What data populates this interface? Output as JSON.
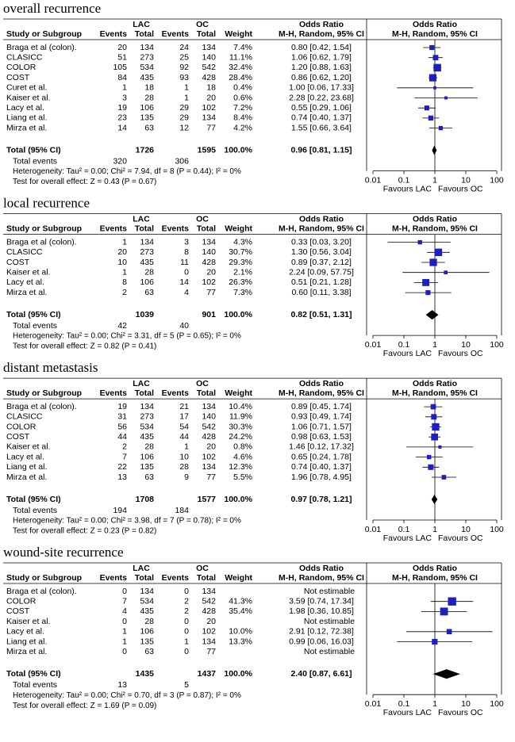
{
  "header": {
    "groups": [
      "LAC",
      "OC",
      "Odds Ratio",
      "Odds Ratio"
    ],
    "columns": [
      "Study or Subgroup",
      "Events",
      "Total",
      "Events",
      "Total",
      "Weight",
      "M-H, Random, 95% CI",
      "M-H, Random, 95% CI"
    ]
  },
  "chart_data": [
    {
      "type": "forest",
      "title": "overall recurrence",
      "x_scale": "log",
      "xlim": [
        0.01,
        100
      ],
      "xticks": [
        0.01,
        0.1,
        1,
        10,
        100
      ],
      "favours": [
        "Favours LAC",
        "Favours OC"
      ],
      "color": "#1f1fbf",
      "rows": [
        {
          "study": "Braga et al (colon).",
          "events_lac": 20,
          "total_lac": 134,
          "events_oc": 24,
          "total_oc": 134,
          "weight": 7.4,
          "weight_label": "7.4%",
          "or": 0.8,
          "ci": [
            0.42,
            1.54
          ],
          "or_label": "0.80 [0.42, 1.54]"
        },
        {
          "study": "CLASICC",
          "events_lac": 51,
          "total_lac": 273,
          "events_oc": 25,
          "total_oc": 140,
          "weight": 11.1,
          "weight_label": "11.1%",
          "or": 1.06,
          "ci": [
            0.62,
            1.79
          ],
          "or_label": "1.06 [0.62, 1.79]"
        },
        {
          "study": "COLOR",
          "events_lac": 105,
          "total_lac": 534,
          "events_oc": 92,
          "total_oc": 542,
          "weight": 32.4,
          "weight_label": "32.4%",
          "or": 1.2,
          "ci": [
            0.88,
            1.63
          ],
          "or_label": "1.20 [0.88, 1.63]"
        },
        {
          "study": "COST",
          "events_lac": 84,
          "total_lac": 435,
          "events_oc": 93,
          "total_oc": 428,
          "weight": 28.4,
          "weight_label": "28.4%",
          "or": 0.86,
          "ci": [
            0.62,
            1.2
          ],
          "or_label": "0.86 [0.62, 1.20]"
        },
        {
          "study": "Curet et al.",
          "events_lac": 1,
          "total_lac": 18,
          "events_oc": 1,
          "total_oc": 18,
          "weight": 0.4,
          "weight_label": "0.4%",
          "or": 1.0,
          "ci": [
            0.06,
            17.33
          ],
          "or_label": "1.00 [0.06, 17.33]"
        },
        {
          "study": "Kaiser et al.",
          "events_lac": 3,
          "total_lac": 28,
          "events_oc": 1,
          "total_oc": 20,
          "weight": 0.6,
          "weight_label": "0.6%",
          "or": 2.28,
          "ci": [
            0.22,
            23.68
          ],
          "or_label": "2.28 [0.22, 23.68]"
        },
        {
          "study": "Lacy et al.",
          "events_lac": 19,
          "total_lac": 106,
          "events_oc": 29,
          "total_oc": 102,
          "weight": 7.2,
          "weight_label": "7.2%",
          "or": 0.55,
          "ci": [
            0.29,
            1.06
          ],
          "or_label": "0.55 [0.29, 1.06]"
        },
        {
          "study": "Liang et al.",
          "events_lac": 23,
          "total_lac": 135,
          "events_oc": 29,
          "total_oc": 134,
          "weight": 8.4,
          "weight_label": "8.4%",
          "or": 0.74,
          "ci": [
            0.4,
            1.37
          ],
          "or_label": "0.74 [0.40, 1.37]"
        },
        {
          "study": "Mirza et al.",
          "events_lac": 14,
          "total_lac": 63,
          "events_oc": 12,
          "total_oc": 77,
          "weight": 4.2,
          "weight_label": "4.2%",
          "or": 1.55,
          "ci": [
            0.66,
            3.64
          ],
          "or_label": "1.55 [0.66, 3.64]"
        }
      ],
      "total": {
        "label": "Total (95% CI)",
        "total_lac": 1726,
        "total_oc": 1595,
        "weight": 100,
        "weight_label": "100.0%",
        "or": 0.96,
        "ci": [
          0.81,
          1.15
        ],
        "or_label": "0.96 [0.81, 1.15]"
      },
      "total_events": {
        "label": "Total events",
        "lac": 320,
        "oc": 306
      },
      "heterogeneity": "Heterogeneity: Tau² = 0.00; Chi² = 7.94, df = 8 (P = 0.44); I² = 0%",
      "overall_effect": "Test for overall effect: Z = 0.43 (P = 0.67)"
    },
    {
      "type": "forest",
      "title": "local recurrence",
      "x_scale": "log",
      "xlim": [
        0.01,
        100
      ],
      "xticks": [
        0.01,
        0.1,
        1,
        10,
        100
      ],
      "favours": [
        "Favours LAC",
        "Favours OC"
      ],
      "color": "#1f1fbf",
      "rows": [
        {
          "study": "Braga et al (colon).",
          "events_lac": 1,
          "total_lac": 134,
          "events_oc": 3,
          "total_oc": 134,
          "weight": 4.3,
          "weight_label": "4.3%",
          "or": 0.33,
          "ci": [
            0.03,
            3.2
          ],
          "or_label": "0.33 [0.03, 3.20]"
        },
        {
          "study": "CLASICC",
          "events_lac": 20,
          "total_lac": 273,
          "events_oc": 8,
          "total_oc": 140,
          "weight": 30.7,
          "weight_label": "30.7%",
          "or": 1.3,
          "ci": [
            0.56,
            3.04
          ],
          "or_label": "1.30 [0.56, 3.04]"
        },
        {
          "study": "COST",
          "events_lac": 10,
          "total_lac": 435,
          "events_oc": 11,
          "total_oc": 428,
          "weight": 29.3,
          "weight_label": "29.3%",
          "or": 0.89,
          "ci": [
            0.37,
            2.12
          ],
          "or_label": "0.89 [0.37, 2.12]"
        },
        {
          "study": "Kaiser et al.",
          "events_lac": 1,
          "total_lac": 28,
          "events_oc": 0,
          "total_oc": 20,
          "weight": 2.1,
          "weight_label": "2.1%",
          "or": 2.24,
          "ci": [
            0.09,
            57.75
          ],
          "or_label": "2.24 [0.09, 57.75]"
        },
        {
          "study": "Lacy et al.",
          "events_lac": 8,
          "total_lac": 106,
          "events_oc": 14,
          "total_oc": 102,
          "weight": 26.3,
          "weight_label": "26.3%",
          "or": 0.51,
          "ci": [
            0.21,
            1.28
          ],
          "or_label": "0.51 [0.21, 1.28]"
        },
        {
          "study": "Mirza et al.",
          "events_lac": 2,
          "total_lac": 63,
          "events_oc": 4,
          "total_oc": 77,
          "weight": 7.3,
          "weight_label": "7.3%",
          "or": 0.6,
          "ci": [
            0.11,
            3.38
          ],
          "or_label": "0.60 [0.11, 3.38]"
        }
      ],
      "total": {
        "label": "Total (95% CI)",
        "total_lac": 1039,
        "total_oc": 901,
        "weight": 100,
        "weight_label": "100.0%",
        "or": 0.82,
        "ci": [
          0.51,
          1.31
        ],
        "or_label": "0.82 [0.51, 1.31]"
      },
      "total_events": {
        "label": "Total events",
        "lac": 42,
        "oc": 40
      },
      "heterogeneity": "Heterogeneity: Tau² = 0.00; Chi² = 3.31, df = 5 (P = 0.65); I² = 0%",
      "overall_effect": "Test for overall effect: Z = 0.82 (P = 0.41)"
    },
    {
      "type": "forest",
      "title": "distant metastasis",
      "x_scale": "log",
      "xlim": [
        0.01,
        100
      ],
      "xticks": [
        0.01,
        0.1,
        1,
        10,
        100
      ],
      "favours": [
        "Favours LAC",
        "Favours OC"
      ],
      "color": "#1f1fbf",
      "rows": [
        {
          "study": "Braga et al (colon).",
          "events_lac": 19,
          "total_lac": 134,
          "events_oc": 21,
          "total_oc": 134,
          "weight": 10.4,
          "weight_label": "10.4%",
          "or": 0.89,
          "ci": [
            0.45,
            1.74
          ],
          "or_label": "0.89 [0.45, 1.74]"
        },
        {
          "study": "CLASICC",
          "events_lac": 31,
          "total_lac": 273,
          "events_oc": 17,
          "total_oc": 140,
          "weight": 11.9,
          "weight_label": "11.9%",
          "or": 0.93,
          "ci": [
            0.49,
            1.74
          ],
          "or_label": "0.93 [0.49, 1.74]"
        },
        {
          "study": "COLOR",
          "events_lac": 56,
          "total_lac": 534,
          "events_oc": 54,
          "total_oc": 542,
          "weight": 30.3,
          "weight_label": "30.3%",
          "or": 1.06,
          "ci": [
            0.71,
            1.57
          ],
          "or_label": "1.06 [0.71, 1.57]"
        },
        {
          "study": "COST",
          "events_lac": 44,
          "total_lac": 435,
          "events_oc": 44,
          "total_oc": 428,
          "weight": 24.2,
          "weight_label": "24.2%",
          "or": 0.98,
          "ci": [
            0.63,
            1.53
          ],
          "or_label": "0.98 [0.63, 1.53]"
        },
        {
          "study": "Kaiser et al.",
          "events_lac": 2,
          "total_lac": 28,
          "events_oc": 1,
          "total_oc": 20,
          "weight": 0.8,
          "weight_label": "0.8%",
          "or": 1.46,
          "ci": [
            0.12,
            17.32
          ],
          "or_label": "1.46 [0.12, 17.32]"
        },
        {
          "study": "Lacy et al.",
          "events_lac": 7,
          "total_lac": 106,
          "events_oc": 10,
          "total_oc": 102,
          "weight": 4.6,
          "weight_label": "4.6%",
          "or": 0.65,
          "ci": [
            0.24,
            1.78
          ],
          "or_label": "0.65 [0.24, 1.78]"
        },
        {
          "study": "Liang et al.",
          "events_lac": 22,
          "total_lac": 135,
          "events_oc": 28,
          "total_oc": 134,
          "weight": 12.3,
          "weight_label": "12.3%",
          "or": 0.74,
          "ci": [
            0.4,
            1.37
          ],
          "or_label": "0.74 [0.40, 1.37]"
        },
        {
          "study": "Mirza et al.",
          "events_lac": 13,
          "total_lac": 63,
          "events_oc": 9,
          "total_oc": 77,
          "weight": 5.5,
          "weight_label": "5.5%",
          "or": 1.96,
          "ci": [
            0.78,
            4.95
          ],
          "or_label": "1.96 [0.78, 4.95]"
        }
      ],
      "total": {
        "label": "Total (95% CI)",
        "total_lac": 1708,
        "total_oc": 1577,
        "weight": 100,
        "weight_label": "100.0%",
        "or": 0.97,
        "ci": [
          0.78,
          1.21
        ],
        "or_label": "0.97 [0.78, 1.21]"
      },
      "total_events": {
        "label": "Total events",
        "lac": 194,
        "oc": 184
      },
      "heterogeneity": "Heterogeneity: Tau² = 0.00; Chi² = 3.98, df = 7 (P = 0.78); I² = 0%",
      "overall_effect": "Test for overall effect: Z = 0.23 (P = 0.82)"
    },
    {
      "type": "forest",
      "title": "wound-site recurrence",
      "x_scale": "log",
      "xlim": [
        0.01,
        100
      ],
      "xticks": [
        0.01,
        0.1,
        1,
        10,
        100
      ],
      "favours": [
        "Favours LAC",
        "Favours OC"
      ],
      "color": "#1f1fbf",
      "rows": [
        {
          "study": "Braga et al (colon).",
          "events_lac": 0,
          "total_lac": 134,
          "events_oc": 0,
          "total_oc": 134,
          "or_label": "Not estimable"
        },
        {
          "study": "COLOR",
          "events_lac": 7,
          "total_lac": 534,
          "events_oc": 2,
          "total_oc": 542,
          "weight": 41.3,
          "weight_label": "41.3%",
          "or": 3.59,
          "ci": [
            0.74,
            17.34
          ],
          "or_label": "3.59 [0.74, 17.34]"
        },
        {
          "study": "COST",
          "events_lac": 4,
          "total_lac": 435,
          "events_oc": 2,
          "total_oc": 428,
          "weight": 35.4,
          "weight_label": "35.4%",
          "or": 1.98,
          "ci": [
            0.36,
            10.85
          ],
          "or_label": "1.98 [0.36, 10.85]"
        },
        {
          "study": "Kaiser et al.",
          "events_lac": 0,
          "total_lac": 28,
          "events_oc": 0,
          "total_oc": 20,
          "or_label": "Not estimable"
        },
        {
          "study": "Lacy et al.",
          "events_lac": 1,
          "total_lac": 106,
          "events_oc": 0,
          "total_oc": 102,
          "weight": 10.0,
          "weight_label": "10.0%",
          "or": 2.91,
          "ci": [
            0.12,
            72.38
          ],
          "or_label": "2.91 [0.12, 72.38]"
        },
        {
          "study": "Liang et al.",
          "events_lac": 1,
          "total_lac": 135,
          "events_oc": 1,
          "total_oc": 134,
          "weight": 13.3,
          "weight_label": "13.3%",
          "or": 0.99,
          "ci": [
            0.06,
            16.03
          ],
          "or_label": "0.99 [0.06, 16.03]"
        },
        {
          "study": "Mirza et al.",
          "events_lac": 0,
          "total_lac": 63,
          "events_oc": 0,
          "total_oc": 77,
          "or_label": "Not estimable"
        }
      ],
      "total": {
        "label": "Total (95% CI)",
        "total_lac": 1435,
        "total_oc": 1437,
        "weight": 100,
        "weight_label": "100.0%",
        "or": 2.4,
        "ci": [
          0.87,
          6.61
        ],
        "or_label": "2.40 [0.87, 6.61]"
      },
      "total_events": {
        "label": "Total events",
        "lac": 13,
        "oc": 5
      },
      "heterogeneity": "Heterogeneity: Tau² = 0.00; Chi² = 0.70, df = 3 (P = 0.87); I² = 0%",
      "overall_effect": "Test for overall effect: Z = 1.69 (P = 0.09)"
    }
  ]
}
